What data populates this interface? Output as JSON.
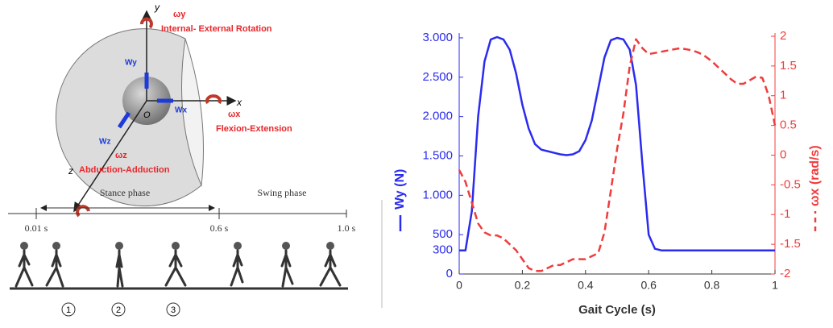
{
  "diagram": {
    "joint": {
      "y_axis": "y",
      "omega_y": "ωy",
      "rotation_y": "Internal- External Rotation",
      "w_y": "Wy",
      "origin": "O",
      "w_x": "Wx",
      "x_axis": "x",
      "omega_x": "ωx",
      "rotation_x": "Flexion-Extension",
      "w_z": "Wz",
      "omega_z": "ωz",
      "z_axis": "z",
      "rotation_z": "Abduction-Adduction"
    },
    "gait": {
      "stance": "Stance phase",
      "swing": "Swing phase",
      "t_start": "0.01 s",
      "t_mid": "0.6 s",
      "t_end": "1.0 s",
      "markers": [
        "1",
        "2",
        "3"
      ]
    }
  },
  "chart_data": {
    "type": "line",
    "xlabel": "Gait Cycle (s)",
    "x": [
      0,
      0.02,
      0.04,
      0.06,
      0.08,
      0.1,
      0.12,
      0.14,
      0.16,
      0.18,
      0.2,
      0.22,
      0.24,
      0.26,
      0.28,
      0.3,
      0.32,
      0.34,
      0.36,
      0.38,
      0.4,
      0.42,
      0.44,
      0.46,
      0.48,
      0.5,
      0.52,
      0.54,
      0.56,
      0.58,
      0.6,
      0.62,
      0.64,
      0.66,
      0.68,
      0.7,
      0.72,
      0.74,
      0.76,
      0.78,
      0.8,
      0.82,
      0.84,
      0.86,
      0.88,
      0.9,
      0.92,
      0.94,
      0.96,
      0.98,
      1
    ],
    "xlim": [
      0,
      1
    ],
    "xticks": [
      0,
      0.2,
      0.4,
      0.6,
      0.8,
      1
    ],
    "ylim": [
      0,
      3020
    ],
    "yticks": [
      0,
      300,
      500,
      {
        "value": 1000,
        "label": "1.000"
      },
      {
        "value": 1500,
        "label": "1.500"
      },
      {
        "value": 2000,
        "label": "2.000"
      },
      {
        "value": 2500,
        "label": "2.500"
      },
      {
        "value": 3000,
        "label": "3.000"
      }
    ],
    "y2lim": [
      -2,
      2
    ],
    "y2ticks": [
      -2,
      -1.5,
      -1,
      -0.5,
      0,
      0.5,
      1,
      1.5,
      2
    ],
    "series": [
      {
        "name": "Wy (N)",
        "color": "#2b2bf0",
        "dash": false,
        "values": [
          300,
          300,
          800,
          2000,
          2700,
          2980,
          3010,
          2980,
          2850,
          2550,
          2150,
          1850,
          1650,
          1580,
          1560,
          1540,
          1520,
          1510,
          1520,
          1560,
          1700,
          1950,
          2350,
          2750,
          2970,
          3000,
          2980,
          2850,
          2400,
          1400,
          500,
          320,
          300,
          300,
          300,
          300,
          300,
          300,
          300,
          300,
          300,
          300,
          300,
          300,
          300,
          300,
          300,
          300,
          300,
          300,
          300
        ]
      },
      {
        "name": "ωx (rad/s)",
        "color": "#f03c3c",
        "dash": true,
        "axis": "y2",
        "values": [
          -0.25,
          -0.45,
          -0.8,
          -1.15,
          -1.3,
          -1.35,
          -1.35,
          -1.4,
          -1.5,
          -1.6,
          -1.75,
          -1.9,
          -1.95,
          -1.95,
          -1.9,
          -1.85,
          -1.85,
          -1.8,
          -1.75,
          -1.75,
          -1.75,
          -1.7,
          -1.65,
          -1.3,
          -0.6,
          0.1,
          0.7,
          1.5,
          1.95,
          1.8,
          1.7,
          1.72,
          1.74,
          1.76,
          1.78,
          1.8,
          1.78,
          1.76,
          1.72,
          1.66,
          1.58,
          1.48,
          1.38,
          1.28,
          1.2,
          1.2,
          1.26,
          1.32,
          1.3,
          1.0,
          0.5
        ]
      }
    ]
  }
}
